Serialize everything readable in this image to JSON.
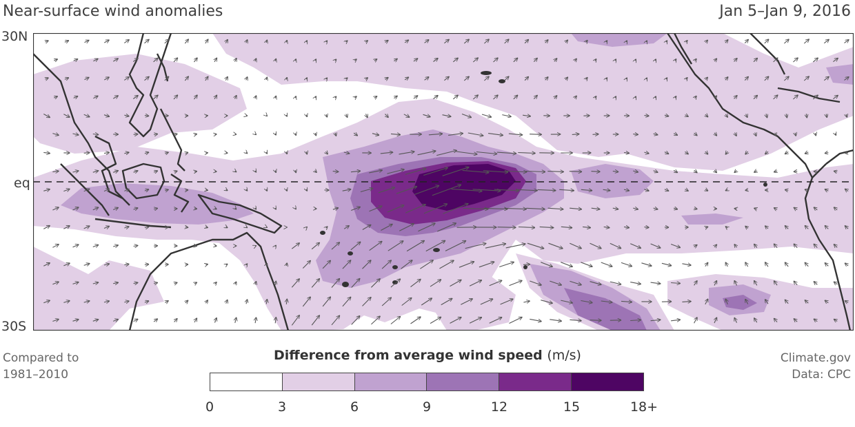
{
  "title": "Near-surface wind anomalies",
  "date_range": "Jan 5–Jan 9, 2016",
  "lat_labels": {
    "north": "30N",
    "equator": "eq",
    "south": "30S"
  },
  "note_left": [
    "Compared to",
    "1981–2010"
  ],
  "note_right": [
    "Climate.gov",
    "Data: CPC"
  ],
  "legend": {
    "title": "Difference from average wind speed",
    "unit": "(m/s)",
    "ticks": [
      "0",
      "3",
      "6",
      "9",
      "12",
      "15",
      "18+"
    ],
    "colors": [
      "#ffffff",
      "#e2cfe6",
      "#c0a2d0",
      "#9d74b5",
      "#7a2a8a",
      "#4e0563"
    ]
  },
  "colors": {
    "coast": "#333333",
    "arrow": "#555555",
    "equator_line": "#222222"
  }
}
